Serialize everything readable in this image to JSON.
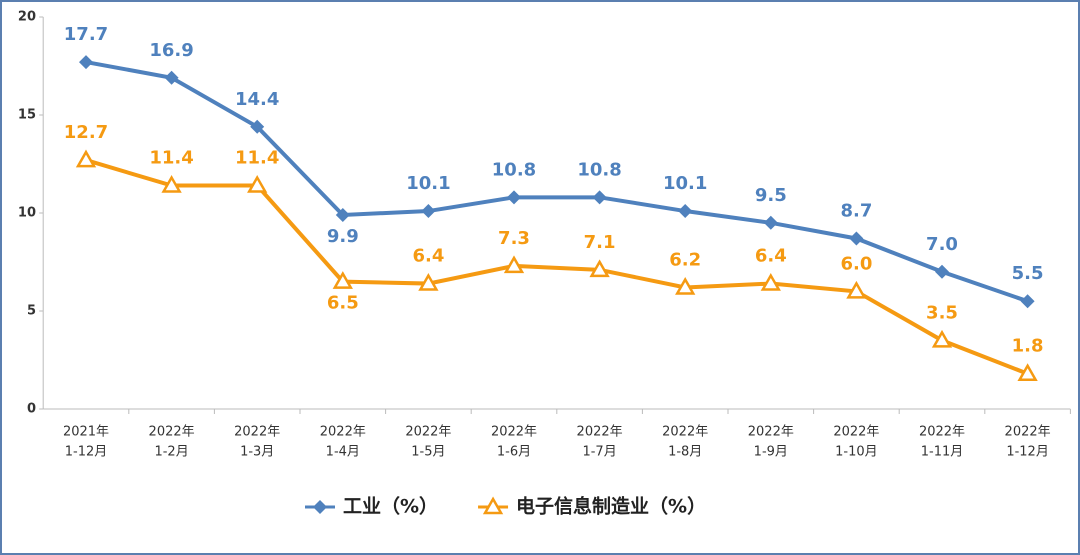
{
  "chart_data": {
    "type": "line",
    "categories": [
      [
        "2021年",
        "1-12月"
      ],
      [
        "2022年",
        "1-2月"
      ],
      [
        "2022年",
        "1-3月"
      ],
      [
        "2022年",
        "1-4月"
      ],
      [
        "2022年",
        "1-5月"
      ],
      [
        "2022年",
        "1-6月"
      ],
      [
        "2022年",
        "1-7月"
      ],
      [
        "2022年",
        "1-8月"
      ],
      [
        "2022年",
        "1-9月"
      ],
      [
        "2022年",
        "1-10月"
      ],
      [
        "2022年",
        "1-11月"
      ],
      [
        "2022年",
        "1-12月"
      ]
    ],
    "series": [
      {
        "name": "工业（%）",
        "color": "#4f81bd",
        "marker": "diamond",
        "values": [
          17.7,
          16.9,
          14.4,
          9.9,
          10.1,
          10.8,
          10.8,
          10.1,
          9.5,
          8.7,
          7.0,
          5.5
        ],
        "value_labels": [
          "17.7",
          "16.9",
          "14.4",
          "9.9",
          "10.1",
          "10.8",
          "10.8",
          "10.1",
          "9.5",
          "8.7",
          "7.0",
          "5.5"
        ]
      },
      {
        "name": "电子信息制造业（%）",
        "color": "#f59a12",
        "marker": "triangle",
        "values": [
          12.7,
          11.4,
          11.4,
          6.5,
          6.4,
          7.3,
          7.1,
          6.2,
          6.4,
          6.0,
          3.5,
          1.8
        ],
        "value_labels": [
          "12.7",
          "11.4",
          "11.4",
          "6.5",
          "6.4",
          "7.3",
          "7.1",
          "6.2",
          "6.4",
          "6.0",
          "3.5",
          "1.8"
        ]
      }
    ],
    "ylim": [
      0,
      20
    ],
    "yticks": [
      0,
      5,
      10,
      15,
      20
    ],
    "grid": false,
    "legend": "bottom"
  }
}
